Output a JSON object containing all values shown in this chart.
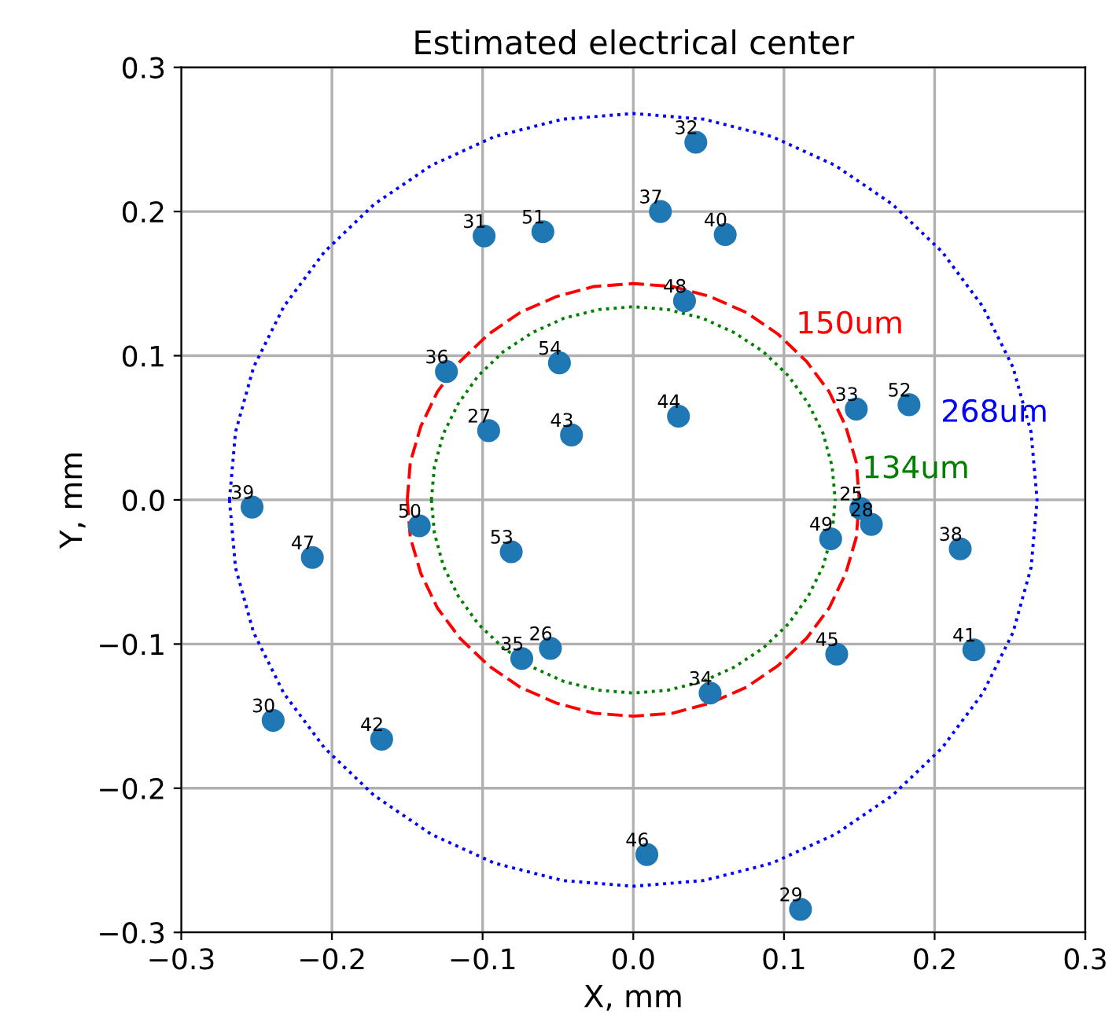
{
  "chart_data": {
    "type": "scatter",
    "title": "Estimated electrical center",
    "xlabel": "X, mm",
    "ylabel": "Y, mm",
    "xlim": [
      -0.3,
      0.3
    ],
    "ylim": [
      -0.3,
      0.3
    ],
    "xticks": [
      {
        "value": -0.3,
        "label": "−0.3"
      },
      {
        "value": -0.2,
        "label": "−0.2"
      },
      {
        "value": -0.1,
        "label": "−0.1"
      },
      {
        "value": 0,
        "label": "0.0"
      },
      {
        "value": 0.1,
        "label": "0.1"
      },
      {
        "value": 0.2,
        "label": "0.2"
      },
      {
        "value": 0.3,
        "label": "0.3"
      }
    ],
    "yticks": [
      {
        "value": -0.3,
        "label": "−0.3"
      },
      {
        "value": -0.2,
        "label": "−0.2"
      },
      {
        "value": -0.1,
        "label": "−0.1"
      },
      {
        "value": 0,
        "label": "0.0"
      },
      {
        "value": 0.1,
        "label": "0.1"
      },
      {
        "value": 0.2,
        "label": "0.2"
      },
      {
        "value": 0.3,
        "label": "0.3"
      }
    ],
    "grid": true,
    "marker": "circle",
    "series": [
      {
        "color": "#1f77b4",
        "x": [
          0.0415,
          0.018,
          0.061,
          -0.099,
          -0.06,
          0.034,
          -0.124,
          -0.049,
          -0.096,
          -0.041,
          0.03,
          0.148,
          0.183,
          -0.253,
          -0.142,
          -0.213,
          -0.081,
          -0.074,
          -0.055,
          -0.239,
          -0.167,
          0.009,
          0.151,
          0.158,
          0.131,
          0.217,
          0.135,
          0.226,
          0.051,
          0.111
        ],
        "values": [
          0.248,
          0.2,
          0.184,
          0.183,
          0.186,
          0.138,
          0.089,
          0.095,
          0.048,
          0.045,
          0.058,
          0.063,
          0.066,
          -0.005,
          -0.018,
          -0.04,
          -0.036,
          -0.11,
          -0.103,
          -0.153,
          -0.166,
          -0.246,
          -0.006,
          -0.017,
          -0.027,
          -0.034,
          -0.107,
          -0.104,
          -0.134,
          -0.284
        ]
      },
      {
        "type": "line",
        "name": "150um",
        "color": "#ff0000",
        "line_style": "dashed",
        "marker": "none",
        "x": [
          -0.15,
          -0.148,
          -0.141,
          -0.13,
          -0.115,
          -0.096,
          -0.075,
          -0.051,
          -0.026,
          0,
          0.026,
          0.051,
          0.075,
          0.096,
          0.115,
          0.13,
          0.141,
          0.148,
          0.15,
          null,
          -0.15,
          -0.148,
          -0.141,
          -0.13,
          -0.115,
          -0.096,
          -0.075,
          -0.051,
          -0.026,
          0,
          0.026,
          0.051,
          0.075,
          0.096,
          0.115,
          0.13,
          0.141,
          0.148,
          0.15
        ],
        "values": [
          0,
          0.026,
          0.051,
          0.075,
          0.096,
          0.115,
          0.13,
          0.141,
          0.148,
          0.15,
          0.148,
          0.141,
          0.13,
          0.115,
          0.096,
          0.075,
          0.051,
          0.026,
          0,
          null,
          0,
          -0.026,
          -0.051,
          -0.075,
          -0.096,
          -0.115,
          -0.13,
          -0.141,
          -0.148,
          -0.15,
          -0.148,
          -0.141,
          -0.13,
          -0.115,
          -0.096,
          -0.075,
          -0.051,
          -0.026,
          0
        ]
      },
      {
        "type": "line",
        "name": "268um",
        "color": "#0000ff",
        "line_style": "dotted",
        "marker": "none",
        "x": [
          -0.268,
          -0.264,
          -0.252,
          -0.232,
          -0.205,
          -0.172,
          -0.134,
          -0.092,
          -0.047,
          0,
          0.047,
          0.092,
          0.134,
          0.172,
          0.205,
          0.232,
          0.252,
          0.264,
          0.268,
          null,
          -0.268,
          -0.264,
          -0.252,
          -0.232,
          -0.205,
          -0.172,
          -0.134,
          -0.092,
          -0.047,
          0,
          0.047,
          0.092,
          0.134,
          0.172,
          0.205,
          0.232,
          0.252,
          0.264,
          0.268
        ],
        "values": [
          0,
          0.047,
          0.092,
          0.134,
          0.172,
          0.205,
          0.232,
          0.252,
          0.264,
          0.268,
          0.264,
          0.252,
          0.232,
          0.205,
          0.172,
          0.134,
          0.092,
          0.047,
          0,
          null,
          0,
          -0.047,
          -0.092,
          -0.134,
          -0.172,
          -0.205,
          -0.232,
          -0.252,
          -0.264,
          -0.268,
          -0.264,
          -0.252,
          -0.232,
          -0.205,
          -0.172,
          -0.134,
          -0.092,
          -0.047,
          0
        ]
      },
      {
        "type": "line",
        "name": "134um",
        "color": "#008000",
        "line_style": "dotted",
        "marker": "none",
        "x": [
          -0.134,
          -0.132,
          -0.126,
          -0.116,
          -0.103,
          -0.086,
          -0.067,
          -0.046,
          -0.023,
          0,
          0.023,
          0.046,
          0.067,
          0.086,
          0.103,
          0.116,
          0.126,
          0.132,
          0.134,
          null,
          -0.134,
          -0.132,
          -0.126,
          -0.116,
          -0.103,
          -0.086,
          -0.067,
          -0.046,
          -0.023,
          0,
          0.023,
          0.046,
          0.067,
          0.086,
          0.103,
          0.116,
          0.126,
          0.132,
          0.134
        ],
        "values": [
          0,
          0.023,
          0.046,
          0.067,
          0.086,
          0.103,
          0.116,
          0.126,
          0.132,
          0.134,
          0.132,
          0.126,
          0.116,
          0.103,
          0.086,
          0.067,
          0.046,
          0.023,
          0,
          null,
          0,
          -0.023,
          -0.046,
          -0.067,
          -0.086,
          -0.103,
          -0.116,
          -0.126,
          -0.132,
          -0.134,
          -0.132,
          -0.126,
          -0.116,
          -0.103,
          -0.086,
          -0.067,
          -0.046,
          -0.023,
          0
        ]
      }
    ],
    "annotations": [
      {
        "text": "32",
        "x": 0.0415,
        "y": 0.248
      },
      {
        "text": "37",
        "x": 0.018,
        "y": 0.2
      },
      {
        "text": "40",
        "x": 0.061,
        "y": 0.184
      },
      {
        "text": "31",
        "x": -0.099,
        "y": 0.183
      },
      {
        "text": "51",
        "x": -0.06,
        "y": 0.186
      },
      {
        "text": "48",
        "x": 0.034,
        "y": 0.138
      },
      {
        "text": "36",
        "x": -0.124,
        "y": 0.089
      },
      {
        "text": "54",
        "x": -0.049,
        "y": 0.095
      },
      {
        "text": "27",
        "x": -0.096,
        "y": 0.048
      },
      {
        "text": "43",
        "x": -0.041,
        "y": 0.045
      },
      {
        "text": "44",
        "x": 0.03,
        "y": 0.058
      },
      {
        "text": "33",
        "x": 0.148,
        "y": 0.063
      },
      {
        "text": "52",
        "x": 0.183,
        "y": 0.066
      },
      {
        "text": "39",
        "x": -0.253,
        "y": -0.005
      },
      {
        "text": "50",
        "x": -0.142,
        "y": -0.018
      },
      {
        "text": "47",
        "x": -0.213,
        "y": -0.04
      },
      {
        "text": "53",
        "x": -0.081,
        "y": -0.036
      },
      {
        "text": "35",
        "x": -0.074,
        "y": -0.11
      },
      {
        "text": "26",
        "x": -0.055,
        "y": -0.103
      },
      {
        "text": "30",
        "x": -0.239,
        "y": -0.153
      },
      {
        "text": "42",
        "x": -0.167,
        "y": -0.166
      },
      {
        "text": "46",
        "x": 0.009,
        "y": -0.246
      },
      {
        "text": "25",
        "x": 0.151,
        "y": -0.006
      },
      {
        "text": "28",
        "x": 0.158,
        "y": -0.017
      },
      {
        "text": "49",
        "x": 0.131,
        "y": -0.027
      },
      {
        "text": "38",
        "x": 0.217,
        "y": -0.034
      },
      {
        "text": "45",
        "x": 0.135,
        "y": -0.107
      },
      {
        "text": "41",
        "x": 0.226,
        "y": -0.104
      },
      {
        "text": "34",
        "x": 0.051,
        "y": -0.134
      },
      {
        "text": "29",
        "x": 0.111,
        "y": -0.284
      }
    ]
  }
}
